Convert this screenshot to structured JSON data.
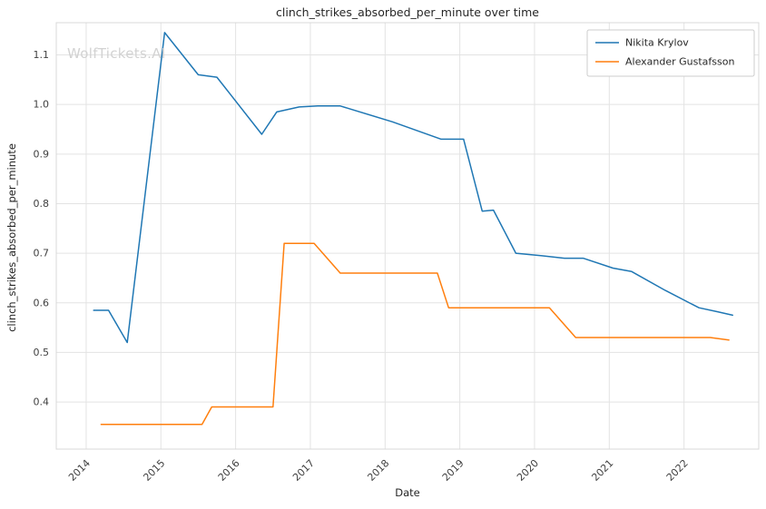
{
  "chart_data": {
    "type": "line",
    "title": "clinch_strikes_absorbed_per_minute over time",
    "xlabel": "Date",
    "ylabel": "clinch_strikes_absorbed_per_minute",
    "watermark": "WolfTickets.AI",
    "grid": true,
    "legend_position": "upper right",
    "xlim": [
      2013.6,
      2023.0
    ],
    "ylim": [
      0.305,
      1.165
    ],
    "x_ticks": [
      2014,
      2015,
      2016,
      2017,
      2018,
      2019,
      2020,
      2021,
      2022
    ],
    "y_ticks": [
      0.4,
      0.5,
      0.6,
      0.7,
      0.8,
      0.9,
      1.0,
      1.1
    ],
    "colors": {
      "grid": "#e3e3e3",
      "plot_border": "#d8d8d8",
      "tick_text": "#404040",
      "legend_border": "#cccccc"
    },
    "series": [
      {
        "name": "Nikita Krylov",
        "color": "#1f77b4",
        "x": [
          2014.1,
          2014.3,
          2014.55,
          2015.05,
          2015.5,
          2015.75,
          2016.35,
          2016.55,
          2016.85,
          2017.1,
          2017.4,
          2018.1,
          2018.75,
          2019.05,
          2019.3,
          2019.45,
          2019.75,
          2020.1,
          2020.4,
          2020.65,
          2021.05,
          2021.3,
          2021.75,
          2022.2,
          2022.45,
          2022.65
        ],
        "y": [
          0.585,
          0.585,
          0.52,
          1.145,
          1.06,
          1.055,
          0.94,
          0.985,
          0.995,
          0.997,
          0.997,
          0.965,
          0.93,
          0.93,
          0.785,
          0.787,
          0.7,
          0.695,
          0.69,
          0.69,
          0.67,
          0.663,
          0.625,
          0.59,
          0.582,
          0.575
        ]
      },
      {
        "name": "Alexander Gustafsson",
        "color": "#ff7f0e",
        "x": [
          2014.2,
          2015.55,
          2015.68,
          2016.5,
          2016.65,
          2017.05,
          2017.4,
          2018.7,
          2018.85,
          2020.2,
          2020.55,
          2022.35,
          2022.6
        ],
        "y": [
          0.355,
          0.355,
          0.39,
          0.39,
          0.72,
          0.72,
          0.66,
          0.66,
          0.59,
          0.59,
          0.53,
          0.53,
          0.525
        ]
      }
    ]
  }
}
